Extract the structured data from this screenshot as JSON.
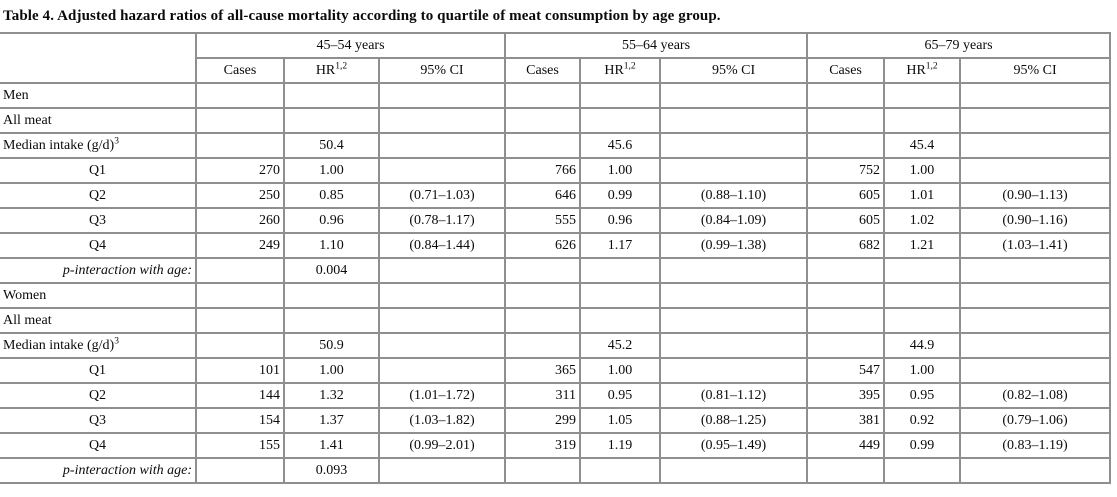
{
  "title": "Table 4. Adjusted hazard ratios of all-cause mortality according to quartile of meat consumption by age group.",
  "table": {
    "age_groups": [
      "45–54 years",
      "55–64 years",
      "65–79 years"
    ],
    "sub_headers": {
      "cases": "Cases",
      "hr": "HR",
      "hr_sup": "1,2",
      "ci": "95% CI"
    },
    "rows": [
      {
        "label": "Men",
        "type": "section",
        "cells": [
          "",
          "",
          "",
          "",
          "",
          "",
          "",
          "",
          ""
        ]
      },
      {
        "label": "All meat",
        "type": "plain",
        "cells": [
          "",
          "",
          "",
          "",
          "",
          "",
          "",
          "",
          ""
        ]
      },
      {
        "label": "Median intake (g/d)",
        "label_sup": "3",
        "type": "plain",
        "cells": [
          "",
          "50.4",
          "",
          "",
          "45.6",
          "",
          "",
          "45.4",
          ""
        ]
      },
      {
        "label": "Q1",
        "type": "q",
        "cells": [
          "270",
          "1.00",
          "",
          "766",
          "1.00",
          "",
          "752",
          "1.00",
          ""
        ]
      },
      {
        "label": "Q2",
        "type": "q",
        "cells": [
          "250",
          "0.85",
          "(0.71–1.03)",
          "646",
          "0.99",
          "(0.88–1.10)",
          "605",
          "1.01",
          "(0.90–1.13)"
        ]
      },
      {
        "label": "Q3",
        "type": "q",
        "cells": [
          "260",
          "0.96",
          "(0.78–1.17)",
          "555",
          "0.96",
          "(0.84–1.09)",
          "605",
          "1.02",
          "(0.90–1.16)"
        ]
      },
      {
        "label": "Q4",
        "type": "q",
        "cells": [
          "249",
          "1.10",
          "(0.84–1.44)",
          "626",
          "1.17",
          "(0.99–1.38)",
          "682",
          {
            "v": "1.21",
            "b": true
          },
          {
            "v": "(1.03–1.41)",
            "b": true
          }
        ]
      },
      {
        "label": "p-interaction with age:",
        "type": "pint",
        "cells": [
          "",
          {
            "v": "0.004",
            "b": true
          },
          "",
          "",
          "",
          "",
          "",
          "",
          ""
        ]
      },
      {
        "label": "Women",
        "type": "section",
        "cells": [
          "",
          "",
          "",
          "",
          "",
          "",
          "",
          "",
          ""
        ]
      },
      {
        "label": "All meat",
        "type": "plain",
        "cells": [
          "",
          "",
          "",
          "",
          "",
          "",
          "",
          "",
          ""
        ]
      },
      {
        "label": "Median intake (g/d)",
        "label_sup": "3",
        "type": "plain",
        "cells": [
          "",
          "50.9",
          "",
          "",
          "45.2",
          "",
          "",
          "44.9",
          ""
        ]
      },
      {
        "label": "Q1",
        "type": "q",
        "cells": [
          "101",
          "1.00",
          "",
          "365",
          "1.00",
          "",
          "547",
          "1.00",
          ""
        ]
      },
      {
        "label": "Q2",
        "type": "q",
        "cells": [
          "144",
          {
            "v": "1.32",
            "b": true
          },
          {
            "v": "(1.01–1.72)",
            "b": true
          },
          "311",
          "0.95",
          "(0.81–1.12)",
          "395",
          "0.95",
          "(0.82–1.08)"
        ]
      },
      {
        "label": "Q3",
        "type": "q",
        "cells": [
          "154",
          {
            "v": "1.37",
            "b": true
          },
          {
            "v": "(1.03–1.82)",
            "b": true
          },
          "299",
          "1.05",
          "(0.88–1.25)",
          "381",
          "0.92",
          "(0.79–1.06)"
        ]
      },
      {
        "label": "Q4",
        "type": "q",
        "cells": [
          "155",
          "1.41",
          "(0.99–2.01)",
          "319",
          "1.19",
          "(0.95–1.49)",
          "449",
          "0.99",
          "(0.83–1.19)"
        ]
      },
      {
        "label": "p-interaction with age:",
        "type": "pint",
        "cells": [
          "",
          "0.093",
          "",
          "",
          "",
          "",
          "",
          "",
          ""
        ]
      }
    ]
  }
}
